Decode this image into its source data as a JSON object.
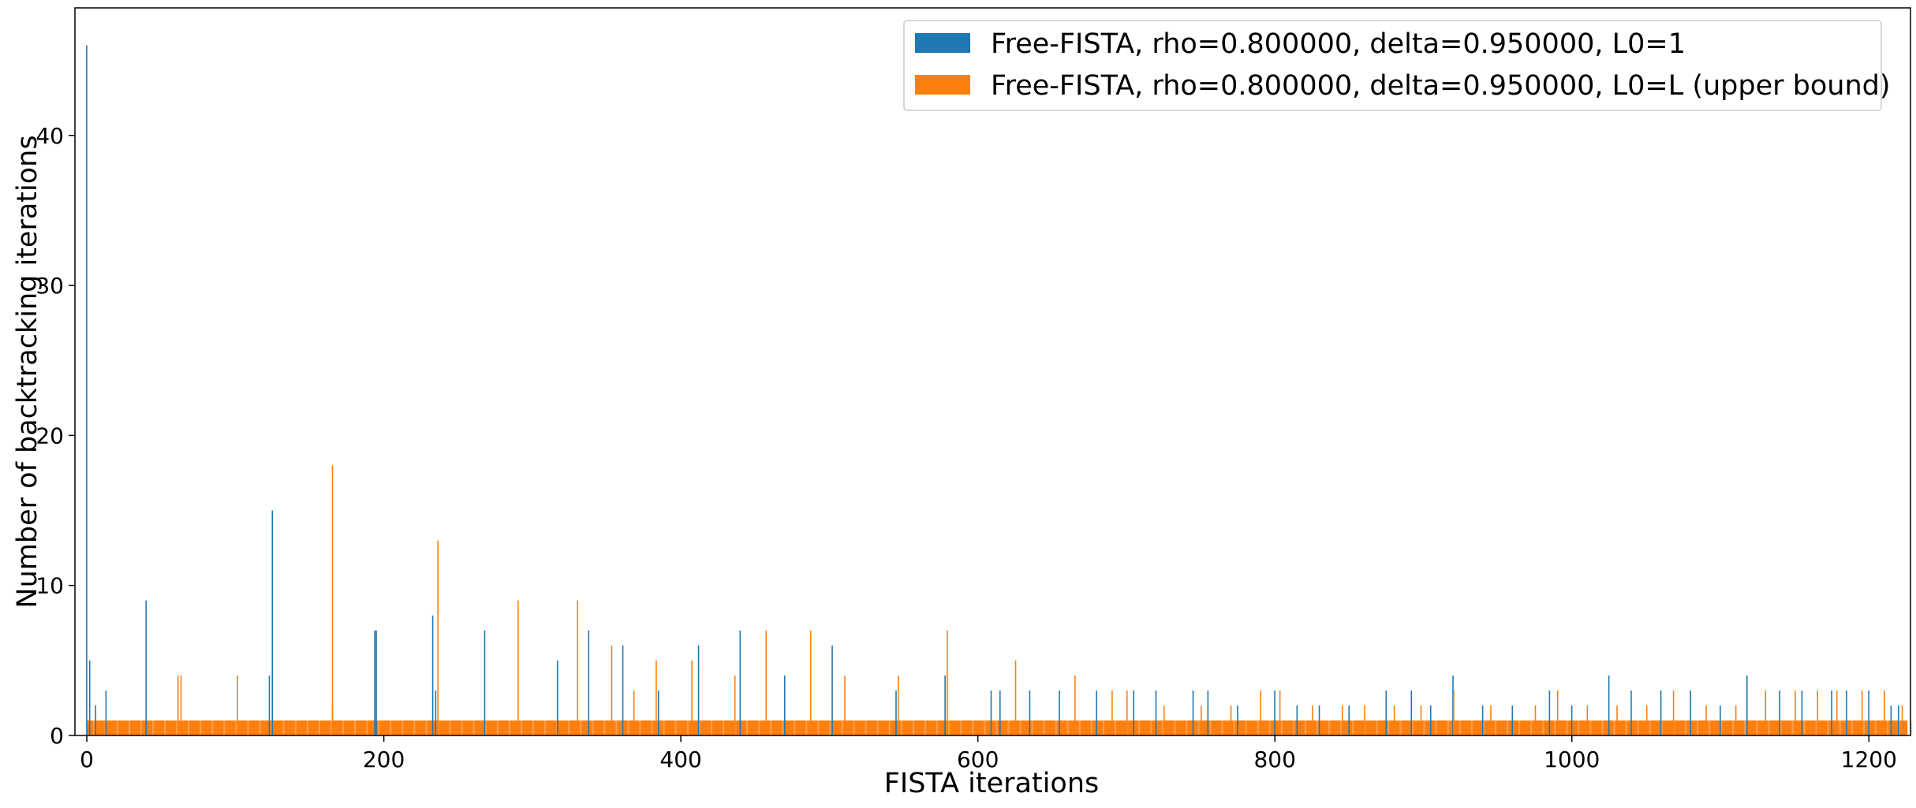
{
  "chart_data": {
    "type": "bar",
    "title": "",
    "xlabel": "FISTA iterations",
    "ylabel": "Number of backtracking iterations",
    "xlim": [
      -8,
      1228
    ],
    "ylim": [
      0,
      48.5
    ],
    "xticks": [
      0,
      200,
      400,
      600,
      800,
      1000,
      1200
    ],
    "yticks": [
      0,
      10,
      20,
      30,
      40
    ],
    "grid": false,
    "legend_position": "top-right",
    "baseline_value": 1,
    "series": [
      {
        "name": "Free-FISTA, rho=0.800000, delta=0.950000, L0=1",
        "color": "#1f77b4",
        "spikes": [
          [
            0,
            46
          ],
          [
            2,
            5
          ],
          [
            6,
            2
          ],
          [
            13,
            3
          ],
          [
            40,
            9
          ],
          [
            123,
            4
          ],
          [
            125,
            15
          ],
          [
            194,
            7
          ],
          [
            195,
            7
          ],
          [
            233,
            8
          ],
          [
            235,
            3
          ],
          [
            268,
            7
          ],
          [
            317,
            5
          ],
          [
            338,
            7
          ],
          [
            361,
            6
          ],
          [
            385,
            3
          ],
          [
            412,
            6
          ],
          [
            440,
            7
          ],
          [
            470,
            4
          ],
          [
            502,
            6
          ],
          [
            545,
            3
          ],
          [
            578,
            4
          ],
          [
            609,
            3
          ],
          [
            615,
            3
          ],
          [
            635,
            3
          ],
          [
            655,
            3
          ],
          [
            680,
            3
          ],
          [
            705,
            3
          ],
          [
            720,
            3
          ],
          [
            745,
            3
          ],
          [
            755,
            3
          ],
          [
            775,
            2
          ],
          [
            800,
            3
          ],
          [
            815,
            2
          ],
          [
            830,
            2
          ],
          [
            850,
            2
          ],
          [
            875,
            3
          ],
          [
            892,
            3
          ],
          [
            905,
            2
          ],
          [
            920,
            4
          ],
          [
            940,
            2
          ],
          [
            960,
            2
          ],
          [
            985,
            3
          ],
          [
            1000,
            2
          ],
          [
            1025,
            4
          ],
          [
            1040,
            3
          ],
          [
            1060,
            3
          ],
          [
            1080,
            3
          ],
          [
            1100,
            2
          ],
          [
            1118,
            4
          ],
          [
            1140,
            3
          ],
          [
            1155,
            3
          ],
          [
            1175,
            3
          ],
          [
            1185,
            3
          ],
          [
            1200,
            3
          ],
          [
            1215,
            2
          ],
          [
            1220,
            2
          ]
        ]
      },
      {
        "name": "Free-FISTA, rho=0.800000, delta=0.950000, L0=L (upper bound)",
        "color": "#ff7f0e",
        "spikes": [
          [
            61,
            4
          ],
          [
            63,
            4
          ],
          [
            101,
            4
          ],
          [
            165,
            18
          ],
          [
            165,
            2
          ],
          [
            236,
            13
          ],
          [
            290,
            9
          ],
          [
            330,
            9
          ],
          [
            353,
            6
          ],
          [
            368,
            3
          ],
          [
            383,
            5
          ],
          [
            407,
            5
          ],
          [
            436,
            4
          ],
          [
            457,
            7
          ],
          [
            487,
            7
          ],
          [
            510,
            4
          ],
          [
            546,
            4
          ],
          [
            579,
            7
          ],
          [
            625,
            5
          ],
          [
            665,
            4
          ],
          [
            690,
            3
          ],
          [
            700,
            3
          ],
          [
            725,
            2
          ],
          [
            750,
            2
          ],
          [
            770,
            2
          ],
          [
            790,
            3
          ],
          [
            803,
            3
          ],
          [
            825,
            2
          ],
          [
            845,
            2
          ],
          [
            860,
            2
          ],
          [
            880,
            2
          ],
          [
            898,
            2
          ],
          [
            920,
            3
          ],
          [
            945,
            2
          ],
          [
            975,
            2
          ],
          [
            990,
            3
          ],
          [
            1010,
            2
          ],
          [
            1030,
            2
          ],
          [
            1050,
            2
          ],
          [
            1068,
            3
          ],
          [
            1090,
            2
          ],
          [
            1110,
            2
          ],
          [
            1130,
            3
          ],
          [
            1150,
            3
          ],
          [
            1165,
            3
          ],
          [
            1178,
            3
          ],
          [
            1195,
            3
          ],
          [
            1210,
            3
          ],
          [
            1222,
            2
          ]
        ]
      }
    ]
  }
}
